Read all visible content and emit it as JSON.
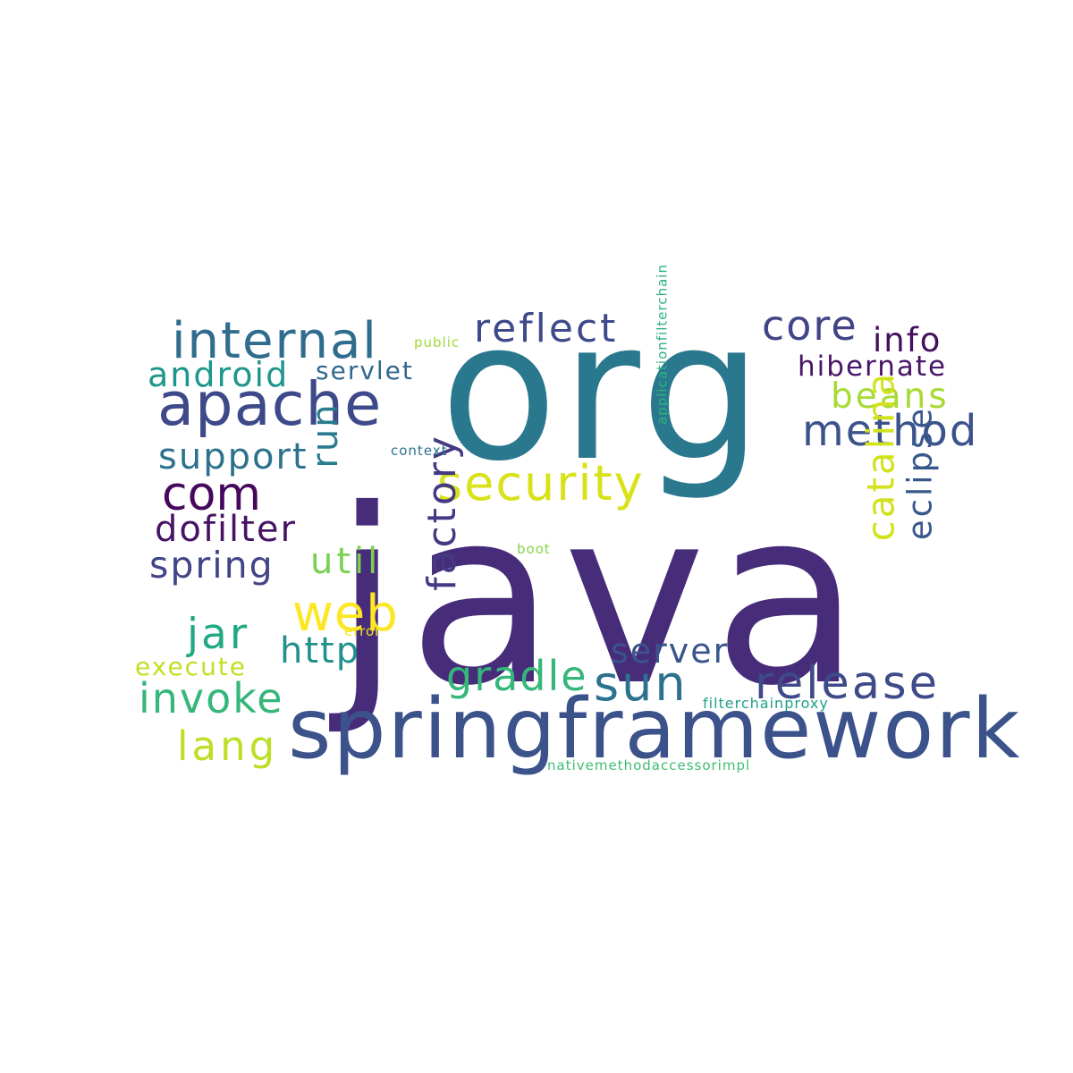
{
  "words": [
    {
      "text": "java",
      "color": "#472c7a"
    },
    {
      "text": "org",
      "color": "#2a788e"
    },
    {
      "text": "springframework",
      "color": "#3b528b"
    },
    {
      "text": "apache",
      "color": "#3e4989"
    },
    {
      "text": "internal",
      "color": "#2f6c8e"
    },
    {
      "text": "security",
      "color": "#d8e219"
    },
    {
      "text": "com",
      "color": "#46085c"
    },
    {
      "text": "reflect",
      "color": "#3e4a89"
    },
    {
      "text": "core",
      "color": "#414487"
    },
    {
      "text": "info",
      "color": "#440f5d"
    },
    {
      "text": "hibernate",
      "color": "#481668"
    },
    {
      "text": "beans",
      "color": "#a8db34"
    },
    {
      "text": "method",
      "color": "#3b528b"
    },
    {
      "text": "android",
      "color": "#1f968b"
    },
    {
      "text": "servlet",
      "color": "#31688e"
    },
    {
      "text": "support",
      "color": "#2c728e"
    },
    {
      "text": "run",
      "color": "#287c8e"
    },
    {
      "text": "dofilter",
      "color": "#471365"
    },
    {
      "text": "spring",
      "color": "#414487"
    },
    {
      "text": "util",
      "color": "#7ad151"
    },
    {
      "text": "web",
      "color": "#fde725"
    },
    {
      "text": "jar",
      "color": "#22a884"
    },
    {
      "text": "http",
      "color": "#21918c"
    },
    {
      "text": "factory",
      "color": "#443983"
    },
    {
      "text": "catalina",
      "color": "#d2e21b"
    },
    {
      "text": "eclipse",
      "color": "#38588c"
    },
    {
      "text": "server",
      "color": "#3a548c"
    },
    {
      "text": "gradle",
      "color": "#35b779"
    },
    {
      "text": "sun",
      "color": "#2c728e"
    },
    {
      "text": "release",
      "color": "#3e4a89"
    },
    {
      "text": "execute",
      "color": "#c2df23"
    },
    {
      "text": "invoke",
      "color": "#35b779"
    },
    {
      "text": "lang",
      "color": "#bddf26"
    },
    {
      "text": "public",
      "color": "#a0da39"
    },
    {
      "text": "context",
      "color": "#2c728e"
    },
    {
      "text": "applicationfilterchain",
      "color": "#2db27d"
    },
    {
      "text": "boot",
      "color": "#86d549"
    },
    {
      "text": "error",
      "color": "#f1e51d"
    },
    {
      "text": "filterchainproxy",
      "color": "#1fa088"
    },
    {
      "text": "nativemethodaccessorimpl",
      "color": "#3fbc73"
    }
  ]
}
